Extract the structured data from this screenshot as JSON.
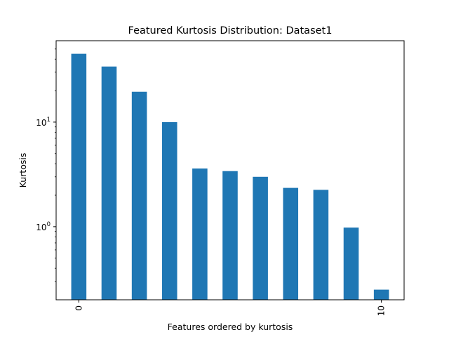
{
  "chart_data": {
    "type": "bar",
    "title": "Featured Kurtosis Distribution: Dataset1",
    "xlabel": "Features ordered by kurtosis",
    "ylabel": "Kurtosis",
    "y_scale": "log",
    "ylim": [
      0.2,
      60
    ],
    "categories": [
      "0",
      "1",
      "2",
      "3",
      "4",
      "5",
      "6",
      "7",
      "8",
      "9",
      "10"
    ],
    "x_tick_labels_shown": [
      "0",
      "10"
    ],
    "y_ticks": [
      {
        "value": 1,
        "base": "10",
        "exp": "0"
      },
      {
        "value": 10,
        "base": "10",
        "exp": "1"
      }
    ],
    "series": [
      {
        "values": [
          45,
          34,
          19.5,
          10,
          3.6,
          3.4,
          3.0,
          2.35,
          2.25,
          0.98,
          0.25
        ],
        "color": "#1f77b4"
      }
    ],
    "grid": false,
    "legend": "none"
  }
}
